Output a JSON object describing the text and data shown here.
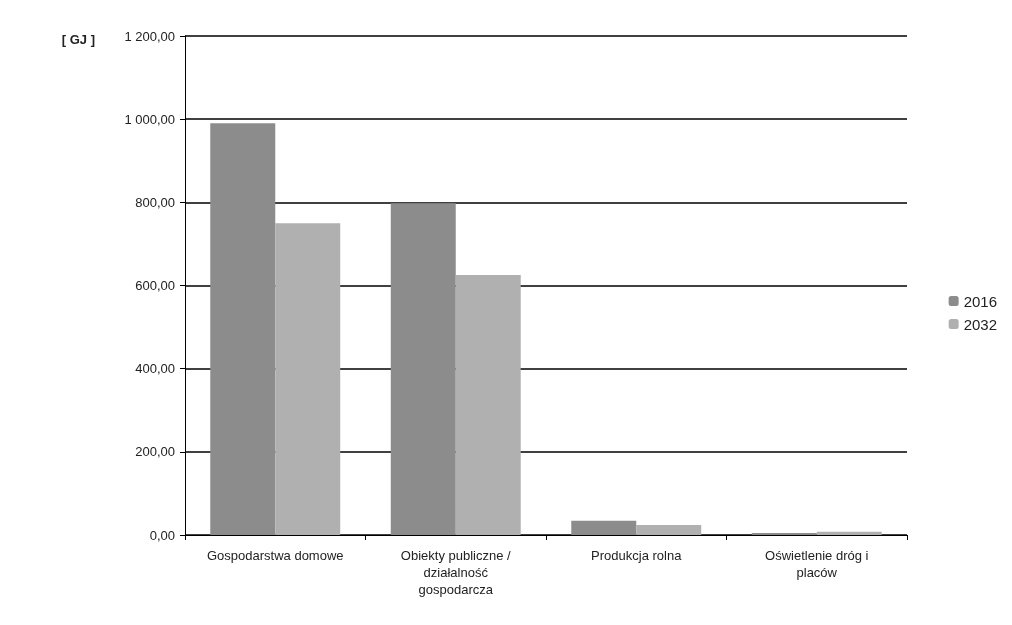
{
  "chart_data": {
    "type": "bar",
    "ylabel": "[ GJ ]",
    "categories": [
      "Gospodarstwa domowe",
      "Obiekty publiczne / działalność gospodarcza",
      "Produkcja rolna",
      "Oświetlenie dróg i placów"
    ],
    "series": [
      {
        "name": "2016",
        "color": "#8c8c8c",
        "values": [
          990,
          798,
          34,
          5
        ]
      },
      {
        "name": "2032",
        "color": "#b0b0b0",
        "values": [
          750,
          625,
          24,
          8
        ]
      }
    ],
    "ylim": [
      0,
      1200
    ],
    "yticks": [
      {
        "value": 0,
        "label": "0,00"
      },
      {
        "value": 200,
        "label": "200,00"
      },
      {
        "value": 400,
        "label": "400,00"
      },
      {
        "value": 600,
        "label": "600,00"
      },
      {
        "value": 800,
        "label": "800,00"
      },
      {
        "value": 1000,
        "label": "1 000,00"
      },
      {
        "value": 1200,
        "label": "1 200,00"
      }
    ],
    "grid": "y",
    "legend": "right"
  }
}
